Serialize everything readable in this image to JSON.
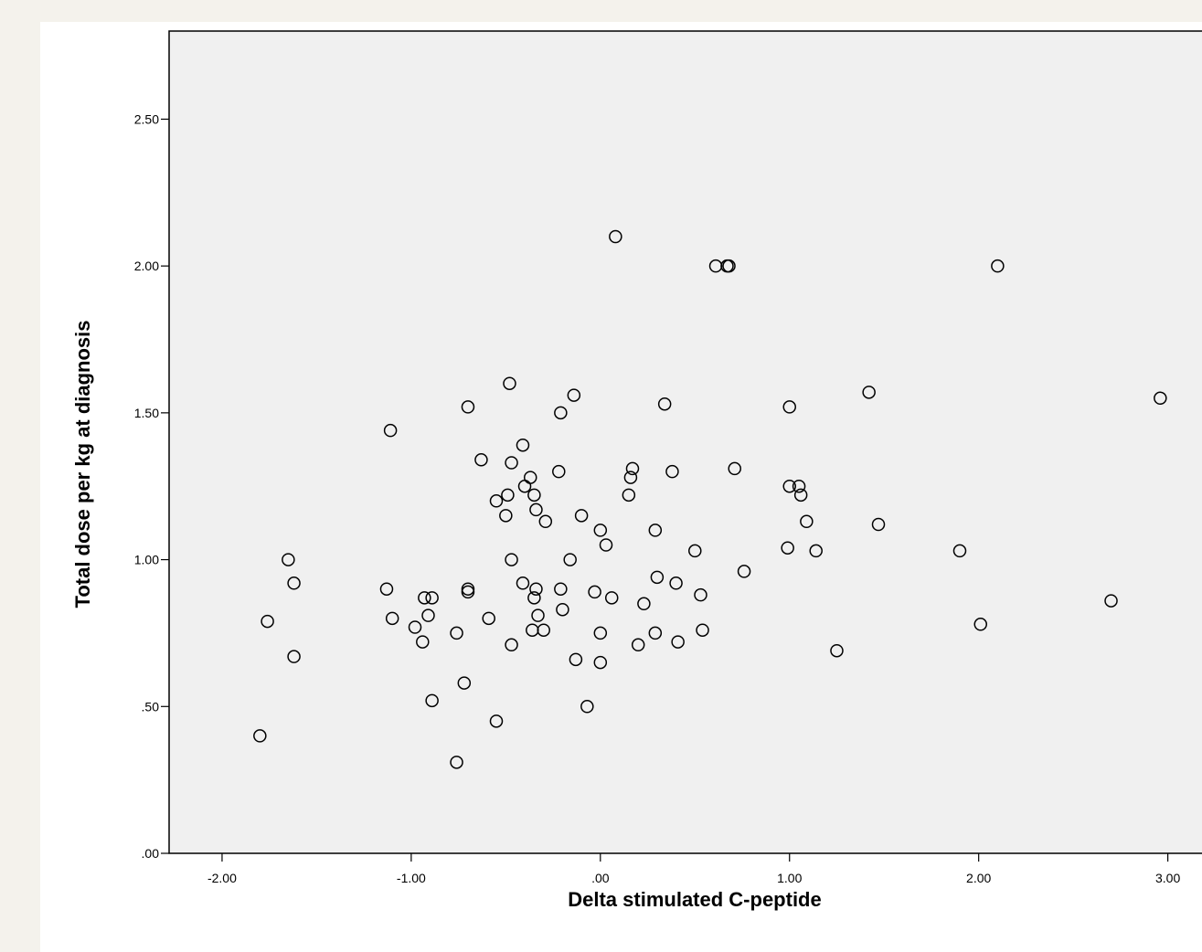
{
  "chart_data": {
    "type": "scatter",
    "title": "",
    "xlabel": "Delta stimulated C-peptide",
    "ylabel": "Total dose per kg at diagnosis",
    "xlim": [
      -2.28,
      3.2
    ],
    "ylim": [
      0,
      2.8
    ],
    "x_ticks": [
      -2,
      -1,
      0,
      1,
      2,
      3
    ],
    "x_tick_labels": [
      "-2.00",
      "-1.00",
      ".00",
      "1.00",
      "2.00",
      "3.00"
    ],
    "y_ticks": [
      0,
      0.5,
      1,
      1.5,
      2,
      2.5
    ],
    "y_tick_labels": [
      ".00",
      ".50",
      "1.00",
      "1.50",
      "2.00",
      "2.50"
    ],
    "grid": false,
    "legend": "none",
    "colors": {
      "plot_background": "#f0f0f0",
      "marker_stroke": "#000000",
      "axis": "#000000"
    },
    "series": [
      {
        "marker": "open-circle",
        "points": [
          [
            -1.8,
            0.4
          ],
          [
            -1.76,
            0.79
          ],
          [
            -1.65,
            1.0
          ],
          [
            -1.62,
            0.92
          ],
          [
            -1.62,
            0.67
          ],
          [
            -1.13,
            0.9
          ],
          [
            -1.11,
            1.44
          ],
          [
            -1.1,
            0.8
          ],
          [
            -0.98,
            0.77
          ],
          [
            -0.94,
            0.72
          ],
          [
            -0.93,
            0.87
          ],
          [
            -0.91,
            0.81
          ],
          [
            -0.89,
            0.87
          ],
          [
            -0.89,
            0.52
          ],
          [
            -0.76,
            0.31
          ],
          [
            -0.76,
            0.75
          ],
          [
            -0.72,
            0.58
          ],
          [
            -0.7,
            1.52
          ],
          [
            -0.7,
            0.9
          ],
          [
            -0.7,
            0.89
          ],
          [
            -0.63,
            1.34
          ],
          [
            -0.59,
            0.8
          ],
          [
            -0.55,
            1.2
          ],
          [
            -0.55,
            0.45
          ],
          [
            -0.5,
            1.15
          ],
          [
            -0.49,
            1.22
          ],
          [
            -0.48,
            1.6
          ],
          [
            -0.47,
            1.33
          ],
          [
            -0.47,
            1.0
          ],
          [
            -0.47,
            0.71
          ],
          [
            -0.41,
            1.39
          ],
          [
            -0.41,
            0.92
          ],
          [
            -0.4,
            1.25
          ],
          [
            -0.37,
            1.28
          ],
          [
            -0.36,
            0.76
          ],
          [
            -0.35,
            0.87
          ],
          [
            -0.35,
            1.22
          ],
          [
            -0.34,
            1.17
          ],
          [
            -0.34,
            0.9
          ],
          [
            -0.33,
            0.81
          ],
          [
            -0.3,
            0.76
          ],
          [
            -0.29,
            1.13
          ],
          [
            -0.22,
            1.3
          ],
          [
            -0.21,
            1.5
          ],
          [
            -0.21,
            0.9
          ],
          [
            -0.2,
            0.83
          ],
          [
            -0.16,
            1.0
          ],
          [
            -0.14,
            1.56
          ],
          [
            -0.13,
            0.66
          ],
          [
            -0.1,
            1.15
          ],
          [
            -0.07,
            0.5
          ],
          [
            -0.03,
            0.89
          ],
          [
            0.0,
            1.1
          ],
          [
            0.0,
            0.75
          ],
          [
            0.0,
            0.65
          ],
          [
            0.03,
            1.05
          ],
          [
            0.06,
            0.87
          ],
          [
            0.08,
            2.1
          ],
          [
            0.15,
            1.22
          ],
          [
            0.16,
            1.28
          ],
          [
            0.17,
            1.31
          ],
          [
            0.2,
            0.71
          ],
          [
            0.23,
            0.85
          ],
          [
            0.29,
            1.1
          ],
          [
            0.29,
            0.75
          ],
          [
            0.3,
            0.94
          ],
          [
            0.34,
            1.53
          ],
          [
            0.38,
            1.3
          ],
          [
            0.4,
            0.92
          ],
          [
            0.41,
            0.72
          ],
          [
            0.5,
            1.03
          ],
          [
            0.53,
            0.88
          ],
          [
            0.54,
            0.76
          ],
          [
            0.61,
            2.0
          ],
          [
            0.67,
            2.0
          ],
          [
            0.68,
            2.0
          ],
          [
            0.71,
            1.31
          ],
          [
            0.76,
            0.96
          ],
          [
            0.99,
            1.04
          ],
          [
            1.0,
            1.52
          ],
          [
            1.0,
            1.25
          ],
          [
            1.05,
            1.25
          ],
          [
            1.06,
            1.22
          ],
          [
            1.09,
            1.13
          ],
          [
            1.14,
            1.03
          ],
          [
            1.25,
            0.69
          ],
          [
            1.42,
            1.57
          ],
          [
            1.47,
            1.12
          ],
          [
            1.9,
            1.03
          ],
          [
            2.01,
            0.78
          ],
          [
            2.1,
            2.0
          ],
          [
            2.7,
            0.86
          ],
          [
            2.96,
            1.55
          ]
        ]
      }
    ]
  }
}
